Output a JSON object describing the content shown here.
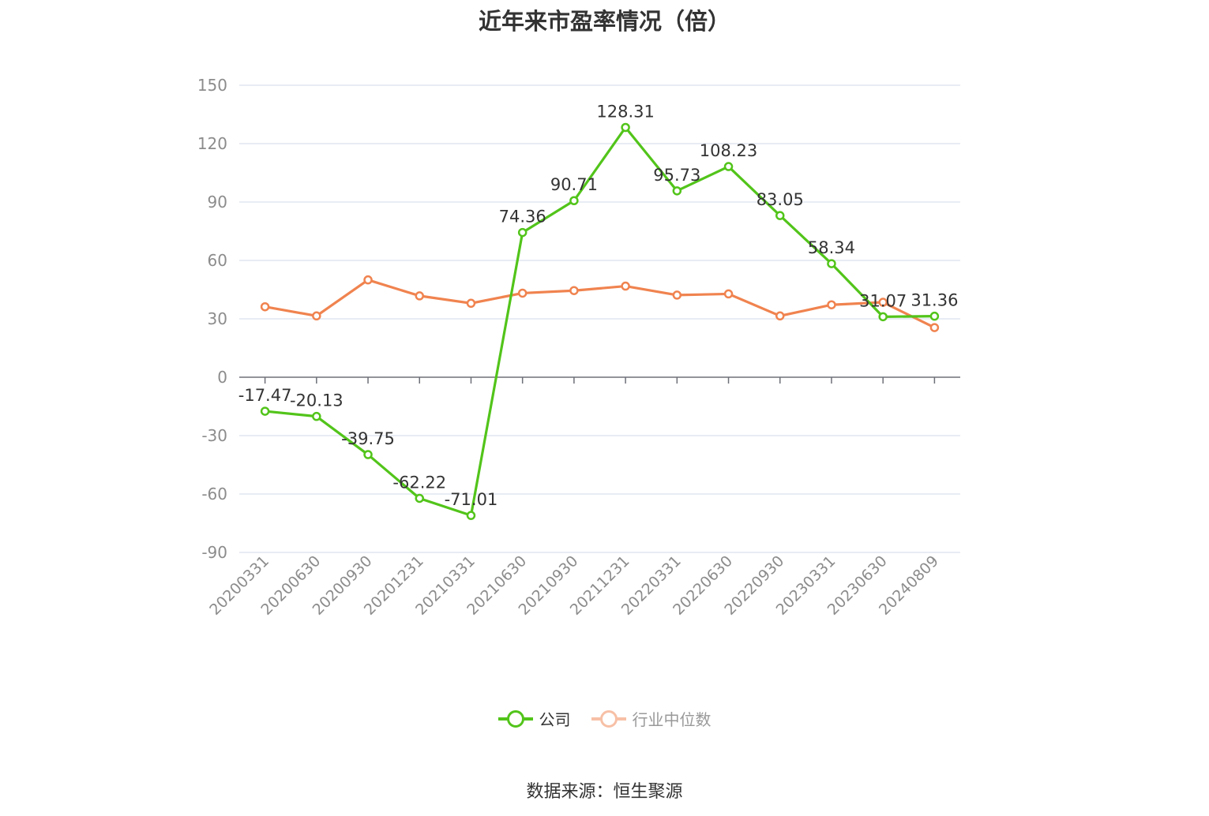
{
  "chart_data": {
    "type": "line",
    "title": "近年来市盈率情况（倍）",
    "categories": [
      "20200331",
      "20200630",
      "20200930",
      "20201231",
      "20210331",
      "20210630",
      "20210930",
      "20211231",
      "20220331",
      "20220630",
      "20220930",
      "20230331",
      "20230630",
      "20240809"
    ],
    "series": [
      {
        "name": "公司",
        "color": "#52c41a",
        "values": [
          -17.47,
          -20.13,
          -39.75,
          -62.22,
          -71.01,
          74.36,
          90.71,
          128.31,
          95.73,
          108.23,
          83.05,
          58.34,
          31.07,
          31.36
        ],
        "labels": [
          "-17.47",
          "-20.13",
          "-39.75",
          "-62.22",
          "-71.01",
          "74.36",
          "90.71",
          "128.31",
          "95.73",
          "108.23",
          "83.05",
          "58.34",
          "31.07",
          "31.36"
        ]
      },
      {
        "name": "行业中位数",
        "color": "#f0834f",
        "values": [
          36.2,
          31.5,
          50.0,
          41.8,
          38.0,
          43.2,
          44.5,
          46.8,
          42.2,
          42.8,
          31.5,
          37.2,
          38.5,
          25.5
        ]
      }
    ],
    "ylim": [
      -90,
      150
    ],
    "yticks": [
      150,
      120,
      90,
      60,
      30,
      0,
      -30,
      -60,
      -90
    ],
    "grid": true,
    "legend_position": "bottom",
    "xlabel": "",
    "ylabel": ""
  },
  "legend": {
    "items": [
      {
        "label": "公司",
        "color": "#52c41a",
        "text_color": "#333333"
      },
      {
        "label": "行业中位数",
        "color": "#f0834f",
        "text_color": "#999999"
      }
    ]
  },
  "source_text": "数据来源：恒生聚源"
}
